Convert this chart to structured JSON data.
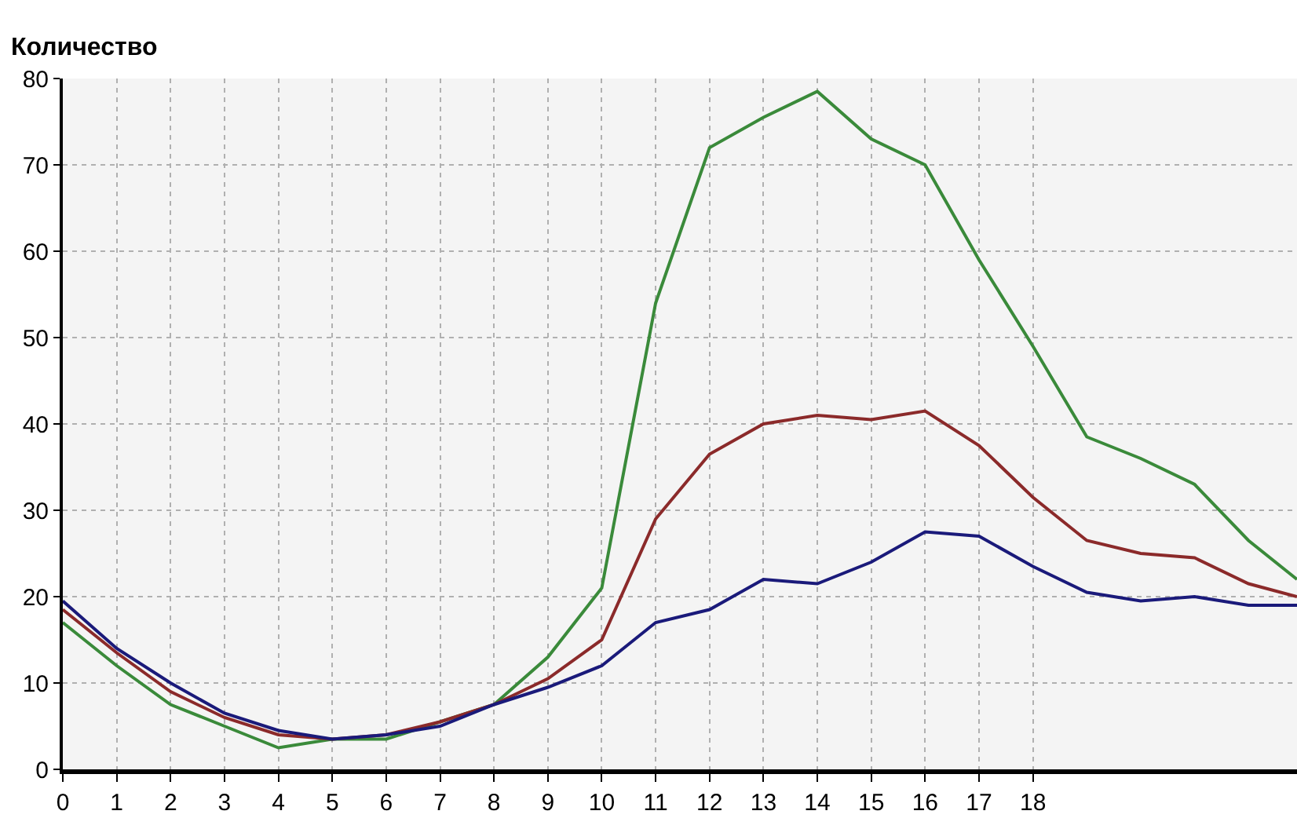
{
  "chart_data": {
    "type": "line",
    "ylabel": "Количество",
    "x": [
      0,
      1,
      2,
      3,
      4,
      5,
      6,
      7,
      8,
      9,
      10,
      11,
      12,
      13,
      14,
      15,
      16,
      17,
      18,
      19,
      20,
      21,
      22,
      22.9
    ],
    "series": [
      {
        "color": "#3a8a3a",
        "values": [
          17,
          12,
          7.5,
          5,
          2.5,
          3.5,
          3.5,
          5.5,
          7.5,
          13,
          21,
          54,
          72,
          75.5,
          78.5,
          73,
          70,
          59,
          49,
          38.5,
          36,
          33,
          26.5,
          22
        ]
      },
      {
        "color": "#8b2a2a",
        "values": [
          18.5,
          13.5,
          9,
          6,
          4,
          3.5,
          4,
          5.5,
          7.5,
          10.5,
          15,
          29,
          36.5,
          40,
          41,
          40.5,
          41.5,
          37.5,
          31.5,
          26.5,
          25,
          24.5,
          21.5,
          20
        ]
      },
      {
        "color": "#1a1a7a",
        "values": [
          19.5,
          14,
          10,
          6.5,
          4.5,
          3.5,
          4,
          5,
          7.5,
          9.5,
          12,
          17,
          18.5,
          22,
          21.5,
          24,
          27.5,
          27,
          23.5,
          20.5,
          19.5,
          20,
          19,
          19
        ]
      }
    ],
    "xlim": [
      0,
      22.9
    ],
    "xticks": [
      0,
      1,
      2,
      3,
      4,
      5,
      6,
      7,
      8,
      9,
      10,
      11,
      12,
      13,
      14,
      15,
      16,
      17,
      18
    ],
    "ylim": [
      0,
      80
    ],
    "yticks": [
      0,
      10,
      20,
      30,
      40,
      50,
      60,
      70,
      80
    ],
    "grid": true,
    "marker": "none",
    "line_style": "solid"
  }
}
